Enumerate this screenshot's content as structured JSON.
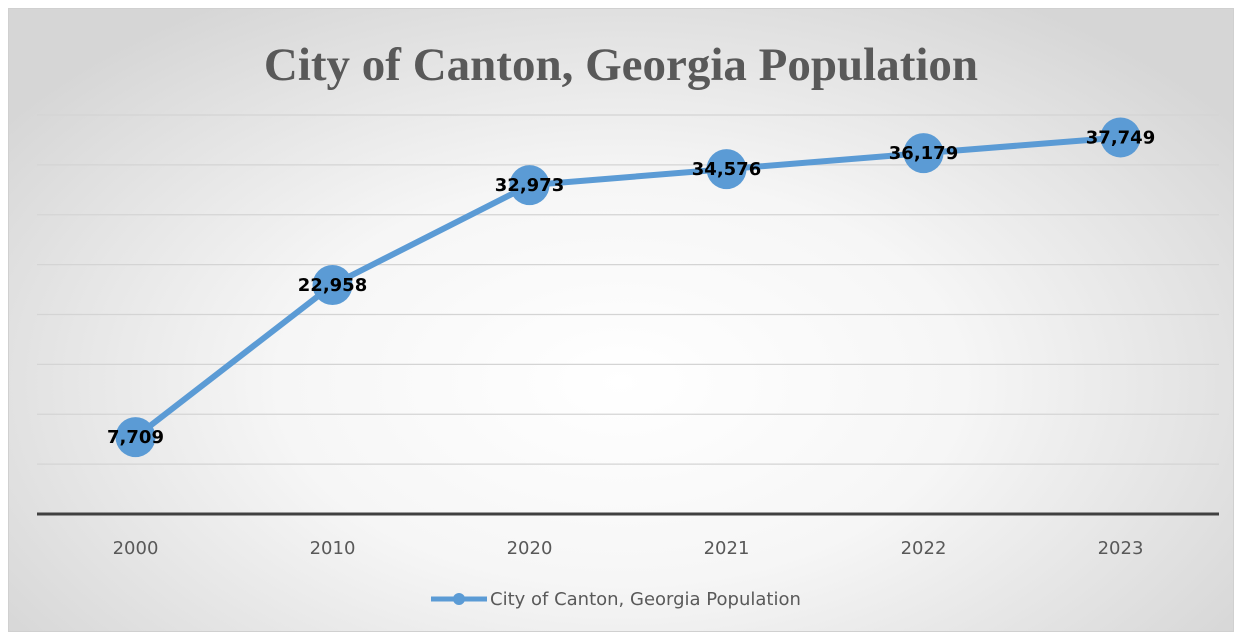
{
  "chart_data": {
    "type": "line",
    "title": "City of Canton, Georgia Population",
    "categories": [
      "2000",
      "2010",
      "2020",
      "2021",
      "2022",
      "2023"
    ],
    "series": [
      {
        "name": "City of Canton, Georgia Population",
        "values": [
          7709,
          22958,
          32973,
          34576,
          36179,
          37749
        ],
        "labels": [
          "7,709",
          "22,958",
          "32,973",
          "34,576",
          "36,179",
          "37,749"
        ],
        "color": "#5b9bd5"
      }
    ],
    "xlabel": "",
    "ylabel": "",
    "ylim": [
      0,
      40000
    ],
    "y_axis_labels_shown": false,
    "grid": true,
    "legend": "bottom"
  }
}
